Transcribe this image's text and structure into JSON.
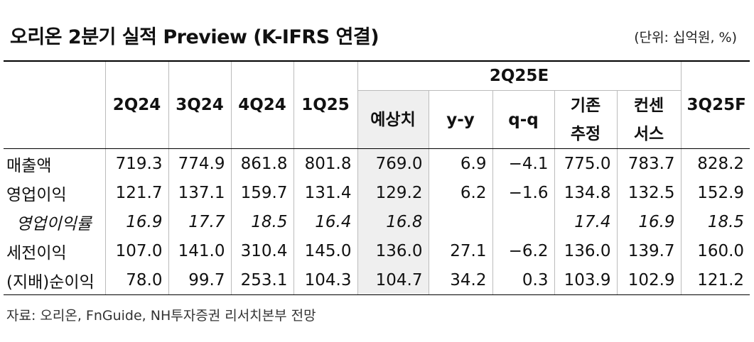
{
  "title": "오리온 2분기 실적 Preview (K-IFRS 연결)",
  "unit": "(단위: 십억원, %)",
  "table": {
    "group_header": "2Q25E",
    "columns": [
      "2Q24",
      "3Q24",
      "4Q24",
      "1Q25",
      "예상치",
      "y-y",
      "q-q",
      "기존\n추정",
      "컨센\n서스",
      "3Q25F"
    ],
    "rows": [
      {
        "label": "매출액",
        "values": [
          "719.3",
          "774.9",
          "861.8",
          "801.8",
          "769.0",
          "6.9",
          "−4.1",
          "775.0",
          "783.7",
          "828.2"
        ]
      },
      {
        "label": "영업이익",
        "values": [
          "121.7",
          "137.1",
          "159.7",
          "131.4",
          "129.2",
          "6.2",
          "−1.6",
          "134.8",
          "132.5",
          "152.9"
        ]
      },
      {
        "label": "영업이익률",
        "italic": true,
        "values": [
          "16.9",
          "17.7",
          "18.5",
          "16.4",
          "16.8",
          null,
          null,
          "17.4",
          "16.9",
          "18.5"
        ]
      },
      {
        "label": "세전이익",
        "values": [
          "107.0",
          "141.0",
          "310.4",
          "145.0",
          "136.0",
          "27.1",
          "−6.2",
          "136.0",
          "139.7",
          "160.0"
        ]
      },
      {
        "label": "(지배)순이익",
        "values": [
          "78.0",
          "99.7",
          "253.1",
          "104.3",
          "104.7",
          "34.2",
          "0.3",
          "103.9",
          "102.9",
          "121.2"
        ]
      }
    ]
  },
  "source": "자료: 오리온, FnGuide, NH투자증권 리서치본부 전망"
}
